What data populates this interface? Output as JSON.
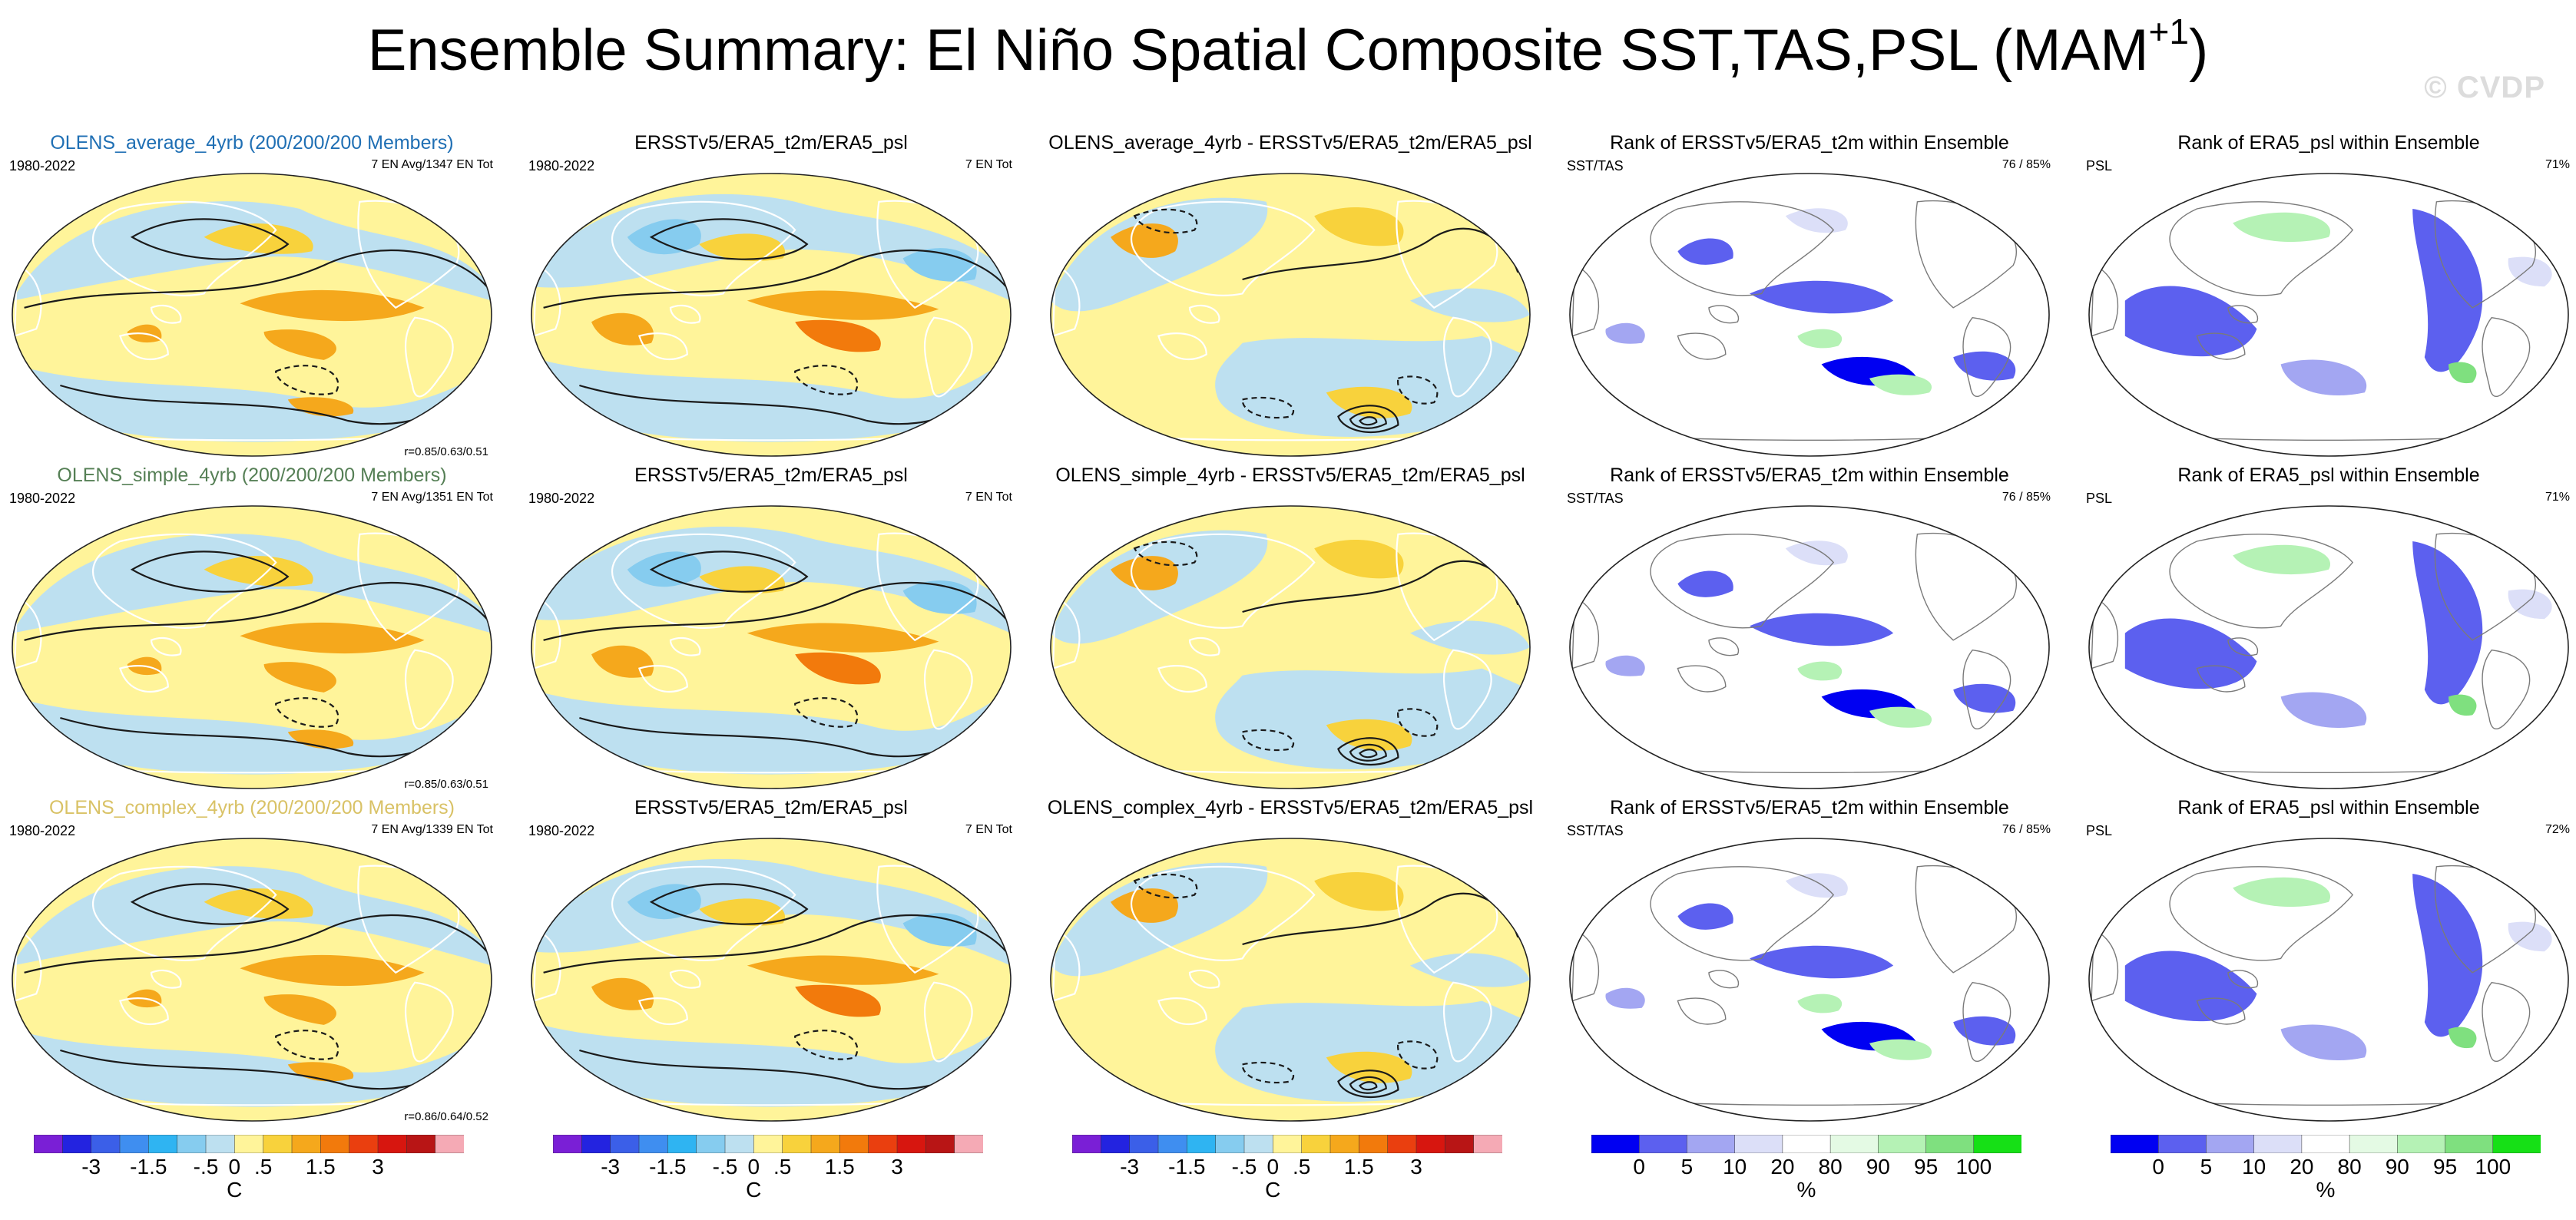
{
  "title": {
    "main": "Ensemble Summary: El Niño Spatial Composite SST,TAS,PSL (MAM",
    "superscript": "+1",
    "close": ")"
  },
  "watermark": "© CVDP",
  "colors": {
    "average_title": "#1f6fb4",
    "simple_title": "#557f55",
    "complex_title": "#d9c266"
  },
  "legend": {
    "temperature": {
      "colors": [
        "#7a1fd6",
        "#2323e0",
        "#3b5fe8",
        "#3f8ef0",
        "#2fb4f2",
        "#86ccef",
        "#bde0f0",
        "#fff49a",
        "#f8d23c",
        "#f5a81c",
        "#f27a0c",
        "#ea3f0f",
        "#d7160f",
        "#b81515",
        "#f5aab5"
      ],
      "ticks": [
        "-3",
        "-1.5",
        "-.5",
        "0",
        ".5",
        "1.5",
        "3"
      ],
      "tick_index": [
        2,
        4,
        6,
        7,
        8,
        10,
        12
      ],
      "unit": "C"
    },
    "rank": {
      "colors": [
        "#0000f2",
        "#5c60ef",
        "#a3a6f2",
        "#dcdff8",
        "#ffffff",
        "#e4fae4",
        "#b5f2b5",
        "#7fe07f",
        "#16e016"
      ],
      "ticks": [
        "0",
        "5",
        "10",
        "20",
        "80",
        "90",
        "95",
        "100"
      ],
      "unit": "%"
    }
  },
  "chart_data": [
    {
      "type": "map",
      "panel": "r1c1",
      "variant": "ensemble",
      "title": "OLENS_average_4yrb (200/200/200 Members)",
      "title_color": "average",
      "left_label": "1980-2022",
      "right_label": "7 EN Avg/1347 EN Tot",
      "corr": "r=0.85/0.63/0.51"
    },
    {
      "type": "map",
      "panel": "r1c2",
      "variant": "obs",
      "title": "ERSSTv5/ERA5_t2m/ERA5_psl",
      "left_label": "1980-2022",
      "right_label": "7 EN Tot",
      "corr": ""
    },
    {
      "type": "map",
      "panel": "r1c3",
      "variant": "diff",
      "title": "OLENS_average_4yrb - ERSSTv5/ERA5_t2m/ERA5_psl",
      "left_label": "",
      "right_label": "",
      "corr": ""
    },
    {
      "type": "map",
      "panel": "r1c4",
      "variant": "rank_sst",
      "title": "Rank of ERSSTv5/ERA5_t2m within Ensemble",
      "left_label": "SST/TAS",
      "right_label": "76 /  85%",
      "corr": ""
    },
    {
      "type": "map",
      "panel": "r1c5",
      "variant": "rank_psl",
      "title": "Rank of ERA5_psl within Ensemble",
      "left_label": "PSL",
      "right_label": "71%",
      "corr": ""
    },
    {
      "type": "map",
      "panel": "r2c1",
      "variant": "ensemble",
      "title": "OLENS_simple_4yrb (200/200/200 Members)",
      "title_color": "simple",
      "left_label": "1980-2022",
      "right_label": "7 EN Avg/1351 EN Tot",
      "corr": "r=0.85/0.63/0.51"
    },
    {
      "type": "map",
      "panel": "r2c2",
      "variant": "obs",
      "title": "ERSSTv5/ERA5_t2m/ERA5_psl",
      "left_label": "1980-2022",
      "right_label": "7 EN Tot",
      "corr": ""
    },
    {
      "type": "map",
      "panel": "r2c3",
      "variant": "diff",
      "title": "OLENS_simple_4yrb - ERSSTv5/ERA5_t2m/ERA5_psl",
      "left_label": "",
      "right_label": "",
      "corr": ""
    },
    {
      "type": "map",
      "panel": "r2c4",
      "variant": "rank_sst",
      "title": "Rank of ERSSTv5/ERA5_t2m within Ensemble",
      "left_label": "SST/TAS",
      "right_label": "76 /  85%",
      "corr": ""
    },
    {
      "type": "map",
      "panel": "r2c5",
      "variant": "rank_psl",
      "title": "Rank of ERA5_psl within Ensemble",
      "left_label": "PSL",
      "right_label": "71%",
      "corr": ""
    },
    {
      "type": "map",
      "panel": "r3c1",
      "variant": "ensemble",
      "title": "OLENS_complex_4yrb (200/200/200 Members)",
      "title_color": "complex",
      "left_label": "1980-2022",
      "right_label": "7 EN Avg/1339 EN Tot",
      "corr": "r=0.86/0.64/0.52"
    },
    {
      "type": "map",
      "panel": "r3c2",
      "variant": "obs",
      "title": "ERSSTv5/ERA5_t2m/ERA5_psl",
      "left_label": "1980-2022",
      "right_label": "7 EN Tot",
      "corr": ""
    },
    {
      "type": "map",
      "panel": "r3c3",
      "variant": "diff",
      "title": "OLENS_complex_4yrb - ERSSTv5/ERA5_t2m/ERA5_psl",
      "left_label": "",
      "right_label": "",
      "corr": ""
    },
    {
      "type": "map",
      "panel": "r3c4",
      "variant": "rank_sst",
      "title": "Rank of ERSSTv5/ERA5_t2m within Ensemble",
      "left_label": "SST/TAS",
      "right_label": "76 /  85%",
      "corr": ""
    },
    {
      "type": "map",
      "panel": "r3c5",
      "variant": "rank_psl",
      "title": "Rank of ERA5_psl within Ensemble",
      "left_label": "PSL",
      "right_label": "72%",
      "corr": ""
    }
  ]
}
